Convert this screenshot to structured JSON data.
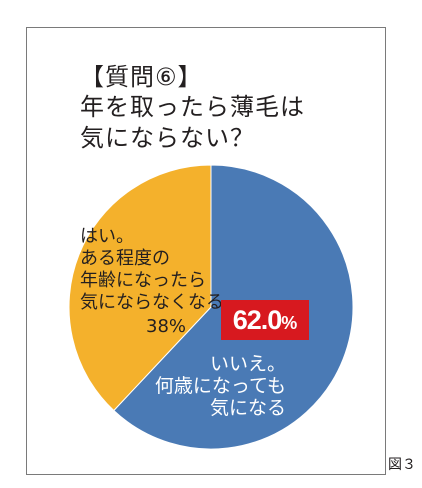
{
  "chart_data": {
    "type": "pie",
    "title_lines": [
      "【質問⑥】",
      "年を取ったら薄毛は",
      "気にならない？"
    ],
    "slices": [
      {
        "value": 62.0,
        "value_label": "62.0%",
        "label_lines": [
          "いいえ。",
          "何歳になっても",
          "気になる"
        ],
        "color": "#4a7ab5"
      },
      {
        "value": 38,
        "value_label": "38%",
        "label_lines": [
          "はい。",
          "ある程度の",
          "年齢になったら",
          "気にならなくなる"
        ],
        "color": "#f4b12c"
      }
    ],
    "start_angle": "12 o'clock",
    "direction": "clockwise",
    "legend": "none"
  },
  "figure_label": "図３",
  "colors": {
    "badge": "#d7191f",
    "frame": "#7a7a7a"
  }
}
